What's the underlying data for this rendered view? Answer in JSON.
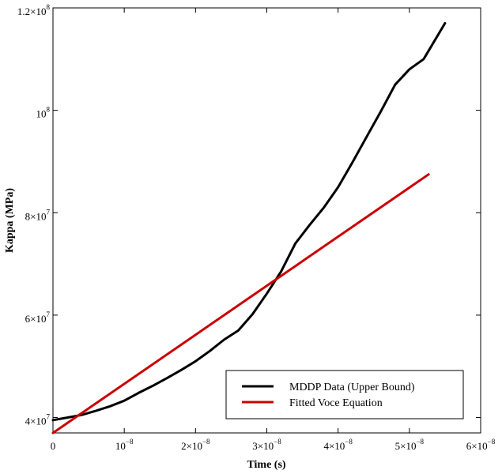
{
  "chart_data": {
    "type": "line",
    "title": "",
    "xlabel": "Time (s)",
    "ylabel": "Kappa (MPa)",
    "xlim": [
      0,
      6e-08
    ],
    "ylim": [
      37000000.0,
      120000000.0
    ],
    "grid": false,
    "legend_position": "bottom-right",
    "x_ticks": [
      {
        "value": 0,
        "mant": "0",
        "exp": ""
      },
      {
        "value": 1e-08,
        "mant": "10",
        "exp": "−8"
      },
      {
        "value": 2e-08,
        "mant": "2×10",
        "exp": "−8"
      },
      {
        "value": 3e-08,
        "mant": "3×10",
        "exp": "−8"
      },
      {
        "value": 4e-08,
        "mant": "4×10",
        "exp": "−8"
      },
      {
        "value": 5e-08,
        "mant": "5×10",
        "exp": "−8"
      },
      {
        "value": 6e-08,
        "mant": "6×10",
        "exp": "−8"
      }
    ],
    "y_ticks": [
      {
        "value": 40000000.0,
        "mant": "4×10",
        "exp": "7"
      },
      {
        "value": 60000000.0,
        "mant": "6×10",
        "exp": "7"
      },
      {
        "value": 80000000.0,
        "mant": "8×10",
        "exp": "7"
      },
      {
        "value": 100000000.0,
        "mant": "10",
        "exp": "8"
      },
      {
        "value": 120000000.0,
        "mant": "1.2×10",
        "exp": "8"
      }
    ],
    "series": [
      {
        "name": "MDDP Data (Upper Bound)",
        "color": "#000000",
        "x": [
          0,
          2e-09,
          4e-09,
          6e-09,
          8e-09,
          1e-08,
          1.2e-08,
          1.4e-08,
          1.6e-08,
          1.8e-08,
          2e-08,
          2.2e-08,
          2.4e-08,
          2.6e-08,
          2.8e-08,
          3e-08,
          3.2e-08,
          3.4e-08,
          3.6e-08,
          3.8e-08,
          4e-08,
          4.2e-08,
          4.4e-08,
          4.6e-08,
          4.8e-08,
          5e-08,
          5.2e-08,
          5.5e-08
        ],
        "y": [
          39500000.0,
          40000000.0,
          40500000.0,
          41300000.0,
          42200000.0,
          43300000.0,
          44800000.0,
          46200000.0,
          47700000.0,
          49300000.0,
          51000000.0,
          53000000.0,
          55200000.0,
          57000000.0,
          60200000.0,
          64200000.0,
          68500000.0,
          74000000.0,
          77600000.0,
          81000000.0,
          85000000.0,
          89800000.0,
          94800000.0,
          99800000.0,
          105000000.0,
          108000000.0,
          110000000.0,
          117000000.0
        ]
      },
      {
        "name": "Fitted Voce Equation",
        "color": "#cc0000",
        "x": [
          0,
          5.27e-08
        ],
        "y": [
          37000000.0,
          87500000.0
        ]
      }
    ]
  }
}
